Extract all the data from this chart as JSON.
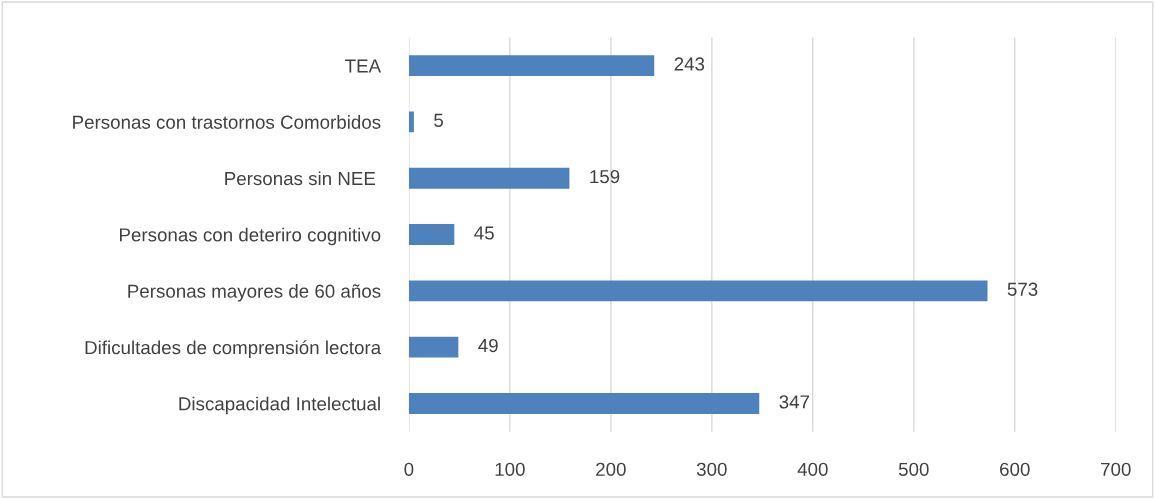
{
  "chart_data": {
    "type": "bar",
    "orientation": "horizontal",
    "categories": [
      "TEA",
      "Personas con trastornos Comorbidos",
      "Personas sin NEE ",
      "Personas con deteriro cognitivo",
      "Personas mayores de 60 años",
      "Dificultades de comprensión lectora",
      "Discapacidad Intelectual"
    ],
    "values": [
      243,
      5,
      159,
      45,
      573,
      49,
      347
    ],
    "color": "#4f81bd",
    "xlim": [
      0,
      700
    ],
    "xticks": [
      0,
      100,
      200,
      300,
      400,
      500,
      600,
      700
    ],
    "grid": "x",
    "data_labels": true
  }
}
